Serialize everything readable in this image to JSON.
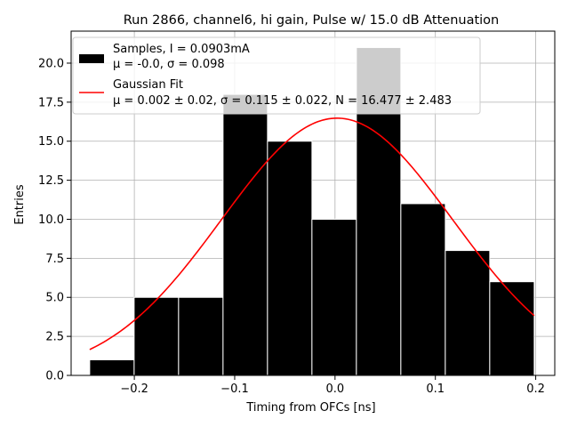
{
  "chart_data": {
    "type": "bar",
    "title": "Run 2866, channel6, hi gain, Pulse w/ 15.0 dB Attenuation",
    "xlabel": "Timing from OFCs [ns]",
    "ylabel": "Entries",
    "xlim": [
      -0.263,
      0.219
    ],
    "ylim": [
      0,
      22.05
    ],
    "xticks": [
      -0.2,
      -0.1,
      0.0,
      0.1,
      0.2
    ],
    "xtick_labels": [
      "−0.2",
      "−0.1",
      "0.0",
      "0.1",
      "0.2"
    ],
    "yticks": [
      0,
      2.5,
      5,
      7.5,
      10,
      12.5,
      15,
      17.5,
      20
    ],
    "ytick_labels": [
      "0.0",
      "2.5",
      "5.0",
      "7.5",
      "10.0",
      "12.5",
      "15.0",
      "17.5",
      "20.0"
    ],
    "grid": true,
    "legend_position": "top-left",
    "bins": [
      {
        "left": -0.2445,
        "right": -0.2002,
        "count": 1
      },
      {
        "left": -0.2002,
        "right": -0.1559,
        "count": 5
      },
      {
        "left": -0.1559,
        "right": -0.1116,
        "count": 5
      },
      {
        "left": -0.1116,
        "right": -0.0673,
        "count": 18
      },
      {
        "left": -0.0673,
        "right": -0.023,
        "count": 15
      },
      {
        "left": -0.023,
        "right": 0.0213,
        "count": 10
      },
      {
        "left": 0.0213,
        "right": 0.0656,
        "count": 21
      },
      {
        "left": 0.0656,
        "right": 0.1099,
        "count": 11
      },
      {
        "left": 0.1099,
        "right": 0.1542,
        "count": 8
      },
      {
        "left": 0.1542,
        "right": 0.1985,
        "count": 6
      }
    ],
    "series": [
      {
        "name": "Samples",
        "type": "histogram",
        "color": "#000000",
        "edgecolor": "#ffffff",
        "legend_label_line1": "Samples, I = 0.0903mA",
        "legend_label_line2_prefix": "μ = -0.0, σ = 0.098"
      },
      {
        "name": "Gaussian Fit",
        "type": "line",
        "color": "#ff0000",
        "legend_label_line1": "Gaussian Fit",
        "legend_label_line2": "μ = 0.002 ± 0.02, σ = 0.115 ± 0.022, N = 16.477 ± 2.483",
        "fit": {
          "mu": 0.002,
          "sigma": 0.115,
          "N": 16.477,
          "x_range": [
            -0.2445,
            0.1985
          ]
        }
      }
    ]
  }
}
